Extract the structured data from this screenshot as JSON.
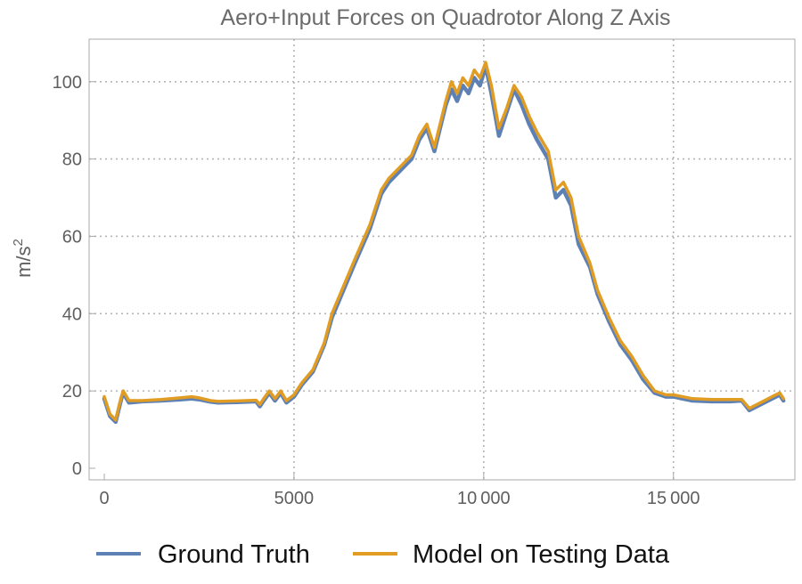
{
  "chart_data": {
    "type": "line",
    "title": "Aero+Input Forces on Quadrotor Along Z Axis",
    "xlabel": "",
    "ylabel": "m/s",
    "ylabel_superscript": "2",
    "xlim": [
      -400,
      18200
    ],
    "ylim": [
      -3,
      111
    ],
    "x_ticks": [
      0,
      5000,
      10000,
      15000
    ],
    "x_tick_labels": [
      "0",
      "5000",
      "10 000",
      "15 000"
    ],
    "y_ticks": [
      0,
      20,
      40,
      60,
      80,
      100
    ],
    "y_tick_labels": [
      "0",
      "20",
      "40",
      "60",
      "80",
      "100"
    ],
    "grid": "dotted, at major ticks",
    "legend": "bottom",
    "series": [
      {
        "name": "Ground Truth",
        "color": "#5e81b5",
        "x": [
          0,
          150,
          300,
          450,
          500,
          650,
          1000,
          1500,
          2000,
          2300,
          2500,
          2800,
          3000,
          3500,
          4000,
          4100,
          4200,
          4350,
          4500,
          4650,
          4800,
          5000,
          5200,
          5500,
          5800,
          6000,
          6300,
          6600,
          7000,
          7300,
          7500,
          7800,
          8100,
          8300,
          8500,
          8700,
          8800,
          9000,
          9150,
          9300,
          9450,
          9600,
          9750,
          9900,
          10050,
          10200,
          10400,
          10600,
          10800,
          11000,
          11200,
          11400,
          11700,
          11900,
          12100,
          12300,
          12500,
          12800,
          13000,
          13300,
          13600,
          13900,
          14200,
          14500,
          14800,
          15000,
          15500,
          16000,
          16500,
          16800,
          17000,
          17300,
          17600,
          17800,
          17900
        ],
        "y": [
          18,
          13.5,
          12,
          18,
          19.5,
          17,
          17.3,
          17.5,
          17.8,
          18,
          17.8,
          17.2,
          17,
          17.1,
          17.3,
          16,
          17.5,
          19.5,
          17.5,
          19.5,
          17,
          18.5,
          21.5,
          25,
          32,
          39,
          46,
          53,
          62,
          71,
          74,
          77,
          80,
          85,
          88,
          82,
          86,
          94,
          98,
          95,
          99,
          97,
          101,
          99,
          104,
          97,
          86,
          92,
          98,
          94,
          89,
          85,
          80,
          70,
          72,
          68,
          58,
          52,
          45,
          38,
          32,
          28,
          23,
          19.5,
          18.5,
          18.5,
          17.5,
          17.3,
          17.3,
          17.5,
          15,
          16.5,
          18,
          19,
          17.5
        ]
      },
      {
        "name": "Model on Testing Data",
        "color": "#e19c24",
        "x": [
          0,
          150,
          300,
          450,
          500,
          650,
          1000,
          1500,
          2000,
          2300,
          2500,
          2800,
          3000,
          3500,
          4000,
          4100,
          4200,
          4350,
          4500,
          4650,
          4800,
          5000,
          5200,
          5500,
          5800,
          6000,
          6300,
          6600,
          7000,
          7300,
          7500,
          7800,
          8100,
          8300,
          8500,
          8700,
          8800,
          9000,
          9150,
          9300,
          9450,
          9600,
          9750,
          9900,
          10050,
          10200,
          10400,
          10600,
          10800,
          11000,
          11200,
          11400,
          11700,
          11900,
          12100,
          12300,
          12500,
          12800,
          13000,
          13300,
          13600,
          13900,
          14200,
          14500,
          14800,
          15000,
          15500,
          16000,
          16500,
          16800,
          17000,
          17300,
          17600,
          17800,
          17900
        ],
        "y": [
          18.5,
          14,
          12.5,
          18.5,
          20,
          17.5,
          17.5,
          17.8,
          18.2,
          18.5,
          18.2,
          17.5,
          17.3,
          17.4,
          17.6,
          16.5,
          18,
          20,
          18,
          20,
          17.5,
          19,
          22,
          25.5,
          32.5,
          40,
          47,
          54,
          63,
          72,
          75,
          78,
          81,
          86,
          89,
          83,
          87,
          95,
          100,
          97,
          101,
          99,
          103,
          101,
          105,
          99,
          88,
          93,
          99,
          96,
          91,
          87,
          82,
          72,
          74,
          70,
          60,
          53,
          46,
          39,
          33,
          29,
          24,
          20,
          19,
          19,
          18,
          17.8,
          17.8,
          17.8,
          15.5,
          17,
          18.5,
          19.5,
          18
        ]
      }
    ]
  }
}
